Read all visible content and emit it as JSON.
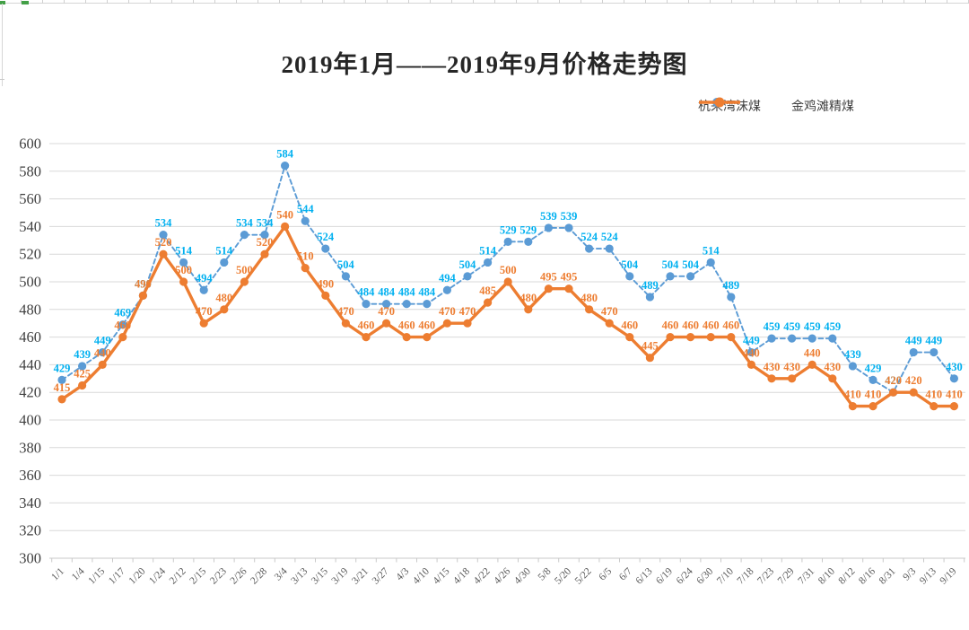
{
  "title": "2019年1月——2019年9月价格走势图",
  "legend": {
    "items": [
      {
        "label": "杭来湾沫煤"
      },
      {
        "label": "金鸡滩精煤"
      }
    ]
  },
  "colors": {
    "series1_line": "#5B9BD5",
    "series1_label": "#00B0F0",
    "series2_line": "#ED7D31",
    "series2_label": "#ED7D31",
    "grid": "#D9D9D9",
    "axis_line": "#C9C9C9",
    "axis_text": "#595959",
    "title_text": "#262626",
    "spreadsheet_green": "#43A047"
  },
  "chart_data": {
    "type": "line",
    "title": "2019年1月——2019年9月价格走势图",
    "categories": [
      "1/1",
      "1/4",
      "1/15",
      "1/17",
      "1/20",
      "1/24",
      "2/12",
      "2/15",
      "2/23",
      "2/26",
      "2/28",
      "3/4",
      "3/13",
      "3/15",
      "3/19",
      "3/21",
      "3/27",
      "4/3",
      "4/10",
      "4/15",
      "4/18",
      "4/22",
      "4/26",
      "4/30",
      "5/8",
      "5/20",
      "5/22",
      "6/5",
      "6/7",
      "6/13",
      "6/19",
      "6/24",
      "6/30",
      "7/10",
      "7/18",
      "7/23",
      "7/29",
      "7/31",
      "8/10",
      "8/12",
      "8/16",
      "8/31",
      "9/3",
      "9/13",
      "9/19"
    ],
    "series": [
      {
        "name": "杭来湾沫煤",
        "style": "dashed",
        "color": "#5B9BD5",
        "label_color": "#00B0F0",
        "values": [
          429,
          439,
          449,
          469,
          490,
          534,
          514,
          494,
          514,
          534,
          534,
          584,
          544,
          524,
          504,
          484,
          484,
          484,
          484,
          494,
          504,
          514,
          529,
          529,
          539,
          539,
          524,
          524,
          504,
          489,
          504,
          504,
          514,
          489,
          449,
          459,
          459,
          459,
          459,
          439,
          429,
          420,
          449,
          449,
          430
        ]
      },
      {
        "name": "金鸡滩精煤",
        "style": "solid",
        "color": "#ED7D31",
        "label_color": "#ED7D31",
        "values": [
          415,
          425,
          440,
          460,
          490,
          520,
          500,
          470,
          480,
          500,
          520,
          540,
          510,
          490,
          470,
          460,
          470,
          460,
          460,
          470,
          470,
          485,
          500,
          480,
          495,
          495,
          480,
          470,
          460,
          445,
          460,
          460,
          460,
          460,
          440,
          430,
          430,
          440,
          430,
          410,
          410,
          420,
          420,
          410,
          410
        ]
      }
    ],
    "ylim": [
      300,
      600
    ],
    "ytick_step": 20,
    "grid": true,
    "data_labels": true,
    "legend_position": "top-right"
  }
}
